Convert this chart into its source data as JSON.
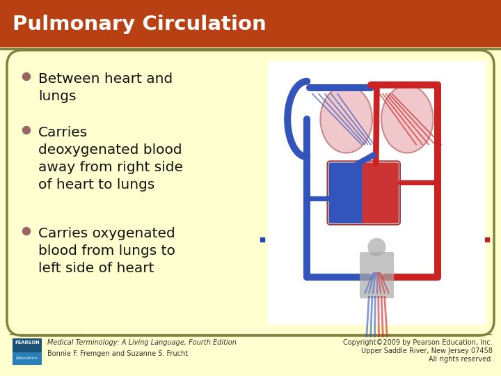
{
  "title": "Pulmonary Circulation",
  "title_bg_color": "#b84012",
  "title_text_color": "#ffffff",
  "slide_bg_color": "#ffffd0",
  "border_color": "#808040",
  "bullet_color": "#996666",
  "bullet_points": [
    "Between heart and\nlungs",
    "Carries\ndeoxygenated blood\naway from right side\nof heart to lungs",
    "Carries oxygenated\nblood from lungs to\nleft side of heart"
  ],
  "bullet_fontsize": 14.5,
  "title_fontsize": 21,
  "footer_left_line1": "Medical Terminology: A Living Language, Fourth Edition",
  "footer_left_line2": "Bonnie F. Fremgen and Suzanne S. Frucht",
  "footer_right_line1": "Copyright©2009 by Pearson Education, Inc.",
  "footer_right_line2": "Upper Saddle River, New Jersey 07458",
  "footer_right_line3": "All rights reserved.",
  "footer_fontsize": 7,
  "pearson_box_color": "#1a5276",
  "pearson_edu_color": "#2980b9",
  "text_color": "#111111",
  "blue_vessel": "#3355bb",
  "red_vessel": "#cc2222",
  "lung_fill": "#f0c8cc",
  "heart_fill_blue": "#3355bb",
  "heart_fill_red": "#cc3333",
  "body_fill": "#aaaaaa",
  "diagram_bg": "#ffffff",
  "marker_blue": "#2244bb",
  "marker_red": "#bb2222"
}
